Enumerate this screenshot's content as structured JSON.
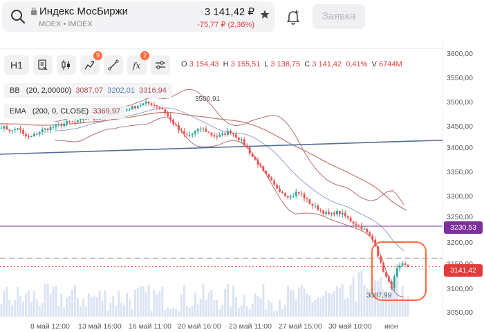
{
  "header": {
    "ticker_name": "Индекс МосБиржи",
    "ticker_sub": "MOEX • IMOEX",
    "price": "3 141,42 ₽",
    "change": "-75,77 ₽ (2,36%)",
    "order_label": "Заявка"
  },
  "toolbar": {
    "timeframe": "H1",
    "indicator_badge": "9",
    "function_badge": "2"
  },
  "ohlc": {
    "o_label": "O",
    "o_value": "3 154,43",
    "h_label": "H",
    "h_value": "3 155,51",
    "l_label": "L",
    "l_value": "3 138,75",
    "c_label": "C",
    "c_value": "3 141,42",
    "pct": "0,41%",
    "v_label": "V",
    "v_value": "6744M"
  },
  "indicators": {
    "bb_name": "BB",
    "bb_params": "(20, 2,00000)",
    "bb_low": "3087,07",
    "bb_mid": "3202,01",
    "bb_high": "3316,94",
    "ema_name": "EMA",
    "ema_params": "(200, 0, CLOSE)",
    "ema_value": "3369,97"
  },
  "price_axis": [
    "3600,00",
    "3550,00",
    "3500,00",
    "3450,00",
    "3400,00",
    "3350,00",
    "3300,00",
    "3250,00",
    "3200,00",
    "3150,00",
    "3100,00",
    "3050,00"
  ],
  "date_axis": [
    "8 май 12:00",
    "13 май 16:00",
    "16 май 11:00",
    "20 май 16:00",
    "23 май 11:00",
    "27 май 15:00",
    "30 май 10:00",
    "июн"
  ],
  "levels": {
    "purple": "3230,53",
    "current": "3141,42"
  },
  "annotations": {
    "high": "3506,91",
    "low": "3087,99"
  },
  "colors": {
    "up": "#26a69a",
    "down": "#ef5350",
    "accent": "#ff6a3c",
    "level_purple": "#7d2f9c",
    "trend": "#4f6d96",
    "ema": "#c0776a",
    "bb_band": "#b07070",
    "bb_mid": "#8ea0d0"
  },
  "chart_data": {
    "type": "candlestick",
    "y_range": [
      3040,
      3610
    ],
    "close_path": [
      3450,
      3445,
      3440,
      3448,
      3430,
      3425,
      3432,
      3440,
      3445,
      3448,
      3452,
      3455,
      3460,
      3458,
      3462,
      3468,
      3470,
      3466,
      3472,
      3475,
      3480,
      3484,
      3486,
      3490,
      3494,
      3498,
      3502,
      3500,
      3495,
      3488,
      3470,
      3455,
      3440,
      3430,
      3432,
      3440,
      3446,
      3438,
      3430,
      3428,
      3434,
      3440,
      3430,
      3420,
      3405,
      3385,
      3370,
      3350,
      3335,
      3320,
      3310,
      3300,
      3295,
      3305,
      3300,
      3285,
      3275,
      3268,
      3260,
      3255,
      3262,
      3258,
      3250,
      3240,
      3232,
      3225,
      3210,
      3195,
      3150,
      3120,
      3095,
      3135,
      3145,
      3141
    ]
  }
}
